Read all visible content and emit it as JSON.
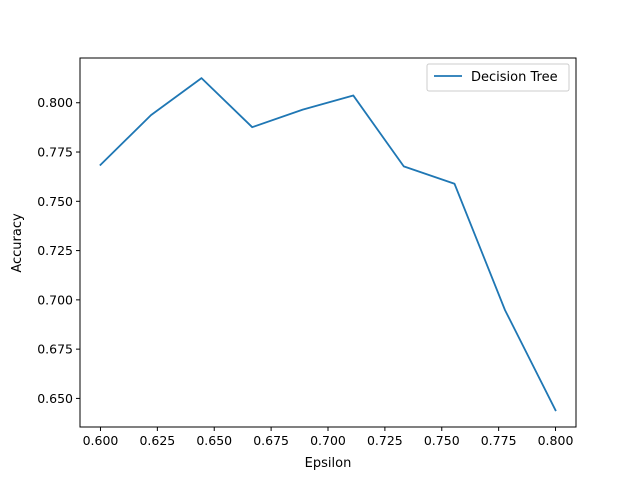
{
  "chart_data": {
    "type": "line",
    "title": "",
    "xlabel": "Epsilon",
    "ylabel": "Accuracy",
    "xlim": [
      0.591,
      0.809
    ],
    "ylim": [
      0.6355,
      0.8227
    ],
    "x_ticks": [
      "0.600",
      "0.625",
      "0.650",
      "0.675",
      "0.700",
      "0.725",
      "0.750",
      "0.775",
      "0.800"
    ],
    "y_ticks": [
      "0.650",
      "0.675",
      "0.700",
      "0.725",
      "0.750",
      "0.775",
      "0.800"
    ],
    "grid": false,
    "legend_position": "top-right",
    "series": [
      {
        "name": "Decision Tree",
        "color": "#1f77b4",
        "x": [
          0.6,
          0.6222,
          0.6444,
          0.6667,
          0.6889,
          0.7111,
          0.7333,
          0.7556,
          0.7778,
          0.8
        ],
        "y": [
          0.7685,
          0.7937,
          0.8125,
          0.7876,
          0.7965,
          0.8037,
          0.7677,
          0.7589,
          0.6948,
          0.644
        ]
      }
    ]
  }
}
